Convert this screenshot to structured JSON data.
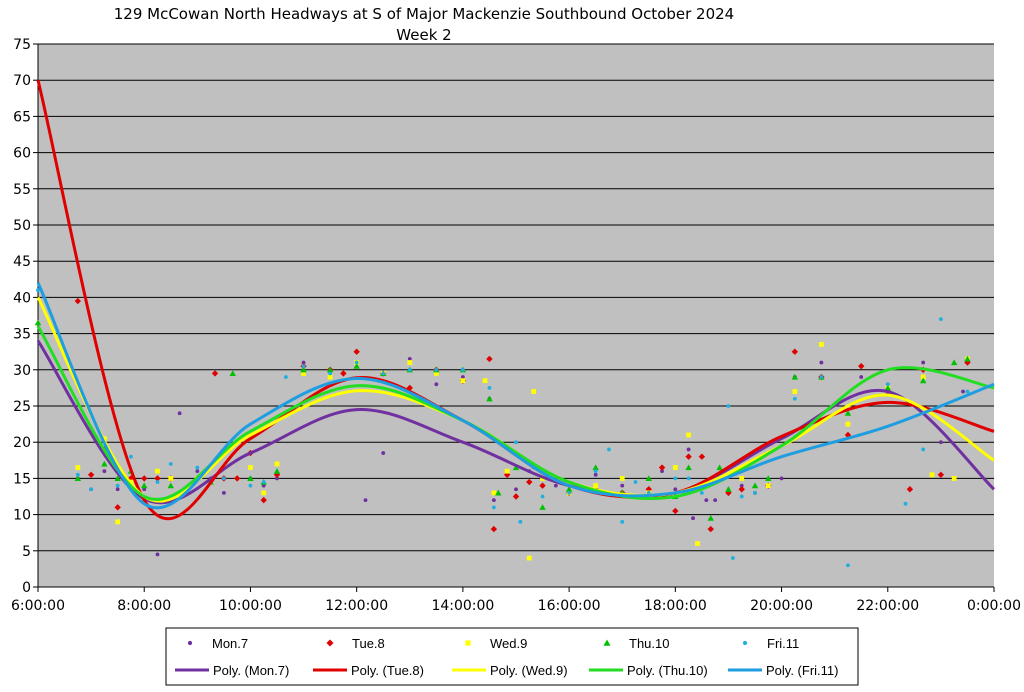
{
  "chart_data": {
    "type": "scatter",
    "title": "129 McCowan North Headways at S of Major Mackenzie Southbound October 2024",
    "subtitle": "Week 2",
    "xlabel": "",
    "ylabel": "",
    "xlim": [
      "6:00:00",
      "0:00:00"
    ],
    "ylim": [
      0,
      75
    ],
    "x_ticks": [
      "6:00:00",
      "8:00:00",
      "10:00:00",
      "12:00:00",
      "14:00:00",
      "16:00:00",
      "18:00:00",
      "20:00:00",
      "22:00:00",
      "0:00:00"
    ],
    "y_ticks": [
      0,
      5,
      10,
      15,
      20,
      25,
      30,
      35,
      40,
      45,
      50,
      55,
      60,
      65,
      70,
      75
    ],
    "grid": "horizontal",
    "legend_position": "bottom",
    "series": [
      {
        "name": "Mon.7",
        "marker": "circle",
        "color": "#7030a0",
        "points": [
          [
            "6:45",
            15
          ],
          [
            "7:00",
            13.5
          ],
          [
            "7:15",
            16
          ],
          [
            "7:30",
            13.5
          ],
          [
            "7:45",
            15
          ],
          [
            "8:00",
            13.5
          ],
          [
            "8:15",
            4.5
          ],
          [
            "8:30",
            15
          ],
          [
            "8:40",
            24
          ],
          [
            "9:00",
            16
          ],
          [
            "9:15",
            15
          ],
          [
            "9:30",
            13
          ],
          [
            "9:45",
            15
          ],
          [
            "10:00",
            15
          ],
          [
            "10:15",
            14
          ],
          [
            "10:30",
            15
          ],
          [
            "11:00",
            31
          ],
          [
            "11:30",
            30
          ],
          [
            "11:45",
            29.5
          ],
          [
            "12:10",
            12
          ],
          [
            "12:30",
            18.5
          ],
          [
            "13:00",
            31.5
          ],
          [
            "13:30",
            28
          ],
          [
            "14:00",
            29
          ],
          [
            "14:30",
            26
          ],
          [
            "14:35",
            12
          ],
          [
            "15:00",
            13.5
          ],
          [
            "15:15",
            16
          ],
          [
            "15:30",
            15
          ],
          [
            "15:45",
            14
          ],
          [
            "16:00",
            13
          ],
          [
            "16:30",
            15.5
          ],
          [
            "17:00",
            14
          ],
          [
            "17:30",
            13
          ],
          [
            "17:45",
            16
          ],
          [
            "18:00",
            13.5
          ],
          [
            "18:15",
            19
          ],
          [
            "18:20",
            9.5
          ],
          [
            "18:35",
            12
          ],
          [
            "18:45",
            12
          ],
          [
            "19:00",
            13
          ],
          [
            "19:15",
            14
          ],
          [
            "19:30",
            13
          ],
          [
            "19:45",
            14
          ],
          [
            "20:00",
            15
          ],
          [
            "20:15",
            29
          ],
          [
            "20:45",
            31
          ],
          [
            "21:30",
            29
          ],
          [
            "22:00",
            28
          ],
          [
            "22:40",
            31
          ],
          [
            "23:00",
            20
          ],
          [
            "23:25",
            27
          ],
          [
            "23:30",
            31.5
          ]
        ]
      },
      {
        "name": "Tue.8",
        "marker": "diamond",
        "color": "#e00000",
        "points": [
          [
            "6:45",
            39.5
          ],
          [
            "7:00",
            15.5
          ],
          [
            "7:15",
            19
          ],
          [
            "7:30",
            11
          ],
          [
            "7:45",
            15
          ],
          [
            "8:00",
            15
          ],
          [
            "8:15",
            15
          ],
          [
            "8:30",
            15
          ],
          [
            "9:00",
            15
          ],
          [
            "9:20",
            29.5
          ],
          [
            "9:30",
            15
          ],
          [
            "9:45",
            15
          ],
          [
            "10:00",
            18.5
          ],
          [
            "10:15",
            12
          ],
          [
            "10:30",
            15.5
          ],
          [
            "11:00",
            30.5
          ],
          [
            "11:30",
            30
          ],
          [
            "11:45",
            29.5
          ],
          [
            "12:00",
            32.5
          ],
          [
            "12:30",
            29.5
          ],
          [
            "13:00",
            27.5
          ],
          [
            "13:30",
            30
          ],
          [
            "14:00",
            28.5
          ],
          [
            "14:30",
            31.5
          ],
          [
            "14:35",
            8
          ],
          [
            "14:50",
            15.5
          ],
          [
            "15:00",
            12.5
          ],
          [
            "15:15",
            14.5
          ],
          [
            "15:30",
            14
          ],
          [
            "16:00",
            13
          ],
          [
            "16:30",
            13.5
          ],
          [
            "17:00",
            13
          ],
          [
            "17:30",
            13.5
          ],
          [
            "17:45",
            16.5
          ],
          [
            "18:00",
            10.5
          ],
          [
            "18:15",
            18
          ],
          [
            "18:30",
            18
          ],
          [
            "18:40",
            8
          ],
          [
            "18:45",
            15
          ],
          [
            "19:00",
            13
          ],
          [
            "19:15",
            13.5
          ],
          [
            "19:45",
            14
          ],
          [
            "20:15",
            32.5
          ],
          [
            "20:45",
            29
          ],
          [
            "21:15",
            21
          ],
          [
            "21:30",
            30.5
          ],
          [
            "22:00",
            27
          ],
          [
            "22:25",
            13.5
          ],
          [
            "22:40",
            30
          ],
          [
            "23:00",
            15.5
          ],
          [
            "23:30",
            31
          ]
        ]
      },
      {
        "name": "Wed.9",
        "marker": "square",
        "color": "#ffff00",
        "points": [
          [
            "6:45",
            16.5
          ],
          [
            "7:15",
            20.5
          ],
          [
            "7:30",
            9
          ],
          [
            "7:45",
            14.5
          ],
          [
            "8:15",
            16
          ],
          [
            "8:30",
            15
          ],
          [
            "9:00",
            15
          ],
          [
            "9:30",
            16.5
          ],
          [
            "10:00",
            16.5
          ],
          [
            "10:15",
            13
          ],
          [
            "10:30",
            17
          ],
          [
            "11:00",
            29.5
          ],
          [
            "11:30",
            29
          ],
          [
            "12:00",
            31
          ],
          [
            "12:30",
            29.5
          ],
          [
            "13:00",
            31
          ],
          [
            "13:30",
            29.5
          ],
          [
            "14:00",
            28.5
          ],
          [
            "14:25",
            28.5
          ],
          [
            "14:35",
            13
          ],
          [
            "14:50",
            16
          ],
          [
            "15:15",
            4
          ],
          [
            "15:20",
            27
          ],
          [
            "15:30",
            15
          ],
          [
            "16:00",
            13
          ],
          [
            "16:30",
            14
          ],
          [
            "17:00",
            15
          ],
          [
            "17:30",
            13
          ],
          [
            "18:00",
            16.5
          ],
          [
            "18:15",
            21
          ],
          [
            "18:25",
            6
          ],
          [
            "18:45",
            15
          ],
          [
            "19:15",
            15
          ],
          [
            "19:45",
            14
          ],
          [
            "20:15",
            27
          ],
          [
            "20:45",
            33.5
          ],
          [
            "21:15",
            22.5
          ],
          [
            "22:00",
            27.5
          ],
          [
            "22:40",
            29
          ],
          [
            "22:50",
            15.5
          ],
          [
            "23:15",
            15
          ],
          [
            "23:30",
            31.5
          ]
        ]
      },
      {
        "name": "Thu.10",
        "marker": "triangle",
        "color": "#00c000",
        "points": [
          [
            "6:00",
            36.5
          ],
          [
            "6:45",
            15
          ],
          [
            "7:15",
            17
          ],
          [
            "7:30",
            15
          ],
          [
            "7:45",
            16
          ],
          [
            "8:00",
            14
          ],
          [
            "8:30",
            14
          ],
          [
            "9:00",
            15
          ],
          [
            "9:15",
            14.5
          ],
          [
            "9:40",
            29.5
          ],
          [
            "10:00",
            15
          ],
          [
            "10:15",
            14.5
          ],
          [
            "10:30",
            16
          ],
          [
            "11:00",
            30
          ],
          [
            "11:30",
            30
          ],
          [
            "12:00",
            30.5
          ],
          [
            "12:30",
            29.5
          ],
          [
            "13:00",
            30
          ],
          [
            "13:30",
            30
          ],
          [
            "14:00",
            30
          ],
          [
            "14:30",
            26
          ],
          [
            "14:40",
            13
          ],
          [
            "15:00",
            16.5
          ],
          [
            "15:30",
            11
          ],
          [
            "16:00",
            13.5
          ],
          [
            "16:30",
            16.5
          ],
          [
            "17:00",
            13
          ],
          [
            "17:30",
            15
          ],
          [
            "18:00",
            12.5
          ],
          [
            "18:15",
            16.5
          ],
          [
            "18:40",
            9.5
          ],
          [
            "18:50",
            16.5
          ],
          [
            "19:00",
            13.5
          ],
          [
            "19:30",
            14
          ],
          [
            "19:45",
            15
          ],
          [
            "20:15",
            29
          ],
          [
            "20:45",
            29
          ],
          [
            "21:15",
            24
          ],
          [
            "22:00",
            27.5
          ],
          [
            "22:40",
            28.5
          ],
          [
            "23:15",
            31
          ],
          [
            "23:30",
            31.5
          ]
        ]
      },
      {
        "name": "Fri.11",
        "marker": "circle",
        "color": "#20b0e0",
        "points": [
          [
            "6:00",
            41
          ],
          [
            "6:45",
            15.5
          ],
          [
            "7:00",
            13.5
          ],
          [
            "7:30",
            14
          ],
          [
            "7:45",
            18
          ],
          [
            "8:15",
            14.5
          ],
          [
            "8:30",
            17
          ],
          [
            "9:00",
            16.5
          ],
          [
            "9:30",
            15
          ],
          [
            "10:00",
            14
          ],
          [
            "10:15",
            14.5
          ],
          [
            "10:40",
            29
          ],
          [
            "11:00",
            30.5
          ],
          [
            "11:30",
            29.5
          ],
          [
            "12:00",
            31
          ],
          [
            "12:30",
            29.5
          ],
          [
            "13:00",
            30
          ],
          [
            "13:30",
            30
          ],
          [
            "14:00",
            30
          ],
          [
            "14:30",
            27.5
          ],
          [
            "14:35",
            11
          ],
          [
            "15:00",
            20
          ],
          [
            "15:05",
            9
          ],
          [
            "15:20",
            16.5
          ],
          [
            "15:30",
            12.5
          ],
          [
            "16:00",
            13
          ],
          [
            "16:30",
            16
          ],
          [
            "16:45",
            19
          ],
          [
            "17:00",
            9
          ],
          [
            "17:15",
            14.5
          ],
          [
            "17:30",
            13
          ],
          [
            "18:00",
            15
          ],
          [
            "18:15",
            15
          ],
          [
            "18:30",
            13
          ],
          [
            "19:00",
            25
          ],
          [
            "19:05",
            4
          ],
          [
            "19:15",
            12.5
          ],
          [
            "19:30",
            13
          ],
          [
            "20:15",
            26
          ],
          [
            "20:45",
            29
          ],
          [
            "21:15",
            3
          ],
          [
            "22:00",
            28
          ],
          [
            "22:20",
            11.5
          ],
          [
            "22:40",
            19
          ],
          [
            "23:00",
            37
          ],
          [
            "23:30",
            27
          ]
        ]
      }
    ],
    "trendlines": [
      {
        "name": "Poly. (Mon.7)",
        "color": "#7030a0",
        "x": [
          "6:00",
          "8:00",
          "10:00",
          "12:00",
          "14:00",
          "16:00",
          "18:00",
          "20:00",
          "22:00",
          "0:00"
        ],
        "y": [
          34,
          12.2,
          18.5,
          24.5,
          20,
          14,
          13,
          20.5,
          27,
          13.5
        ]
      },
      {
        "name": "Poly. (Tue.8)",
        "color": "#e00000",
        "x": [
          "6:00",
          "8:00",
          "10:00",
          "12:00",
          "14:00",
          "16:00",
          "18:00",
          "20:00",
          "22:00",
          "0:00"
        ],
        "y": [
          70,
          12,
          20.5,
          28.9,
          23,
          14,
          13,
          20.8,
          25.5,
          21.5
        ]
      },
      {
        "name": "Poly. (Wed.9)",
        "color": "#ffff00",
        "x": [
          "6:00",
          "8:00",
          "10:00",
          "12:00",
          "14:00",
          "16:00",
          "18:00",
          "20:00",
          "22:00",
          "0:00"
        ],
        "y": [
          40,
          12.5,
          21,
          27.1,
          23,
          14.5,
          13,
          19.5,
          26.5,
          17.5
        ]
      },
      {
        "name": "Poly. (Thu.10)",
        "color": "#22dd22",
        "x": [
          "6:00",
          "8:00",
          "10:00",
          "12:00",
          "14:00",
          "16:00",
          "18:00",
          "20:00",
          "22:00",
          "0:00"
        ],
        "y": [
          36,
          12.5,
          21.5,
          27.8,
          23,
          14.5,
          12.5,
          19.5,
          30,
          27.5
        ]
      },
      {
        "name": "Poly. (Fri.11)",
        "color": "#1e9ee0",
        "x": [
          "6:00",
          "8:00",
          "10:00",
          "12:00",
          "14:00",
          "16:00",
          "18:00",
          "20:00",
          "22:00",
          "0:00"
        ],
        "y": [
          42,
          11.5,
          22.5,
          28.8,
          23,
          14,
          13,
          18,
          22.2,
          28
        ]
      }
    ]
  }
}
